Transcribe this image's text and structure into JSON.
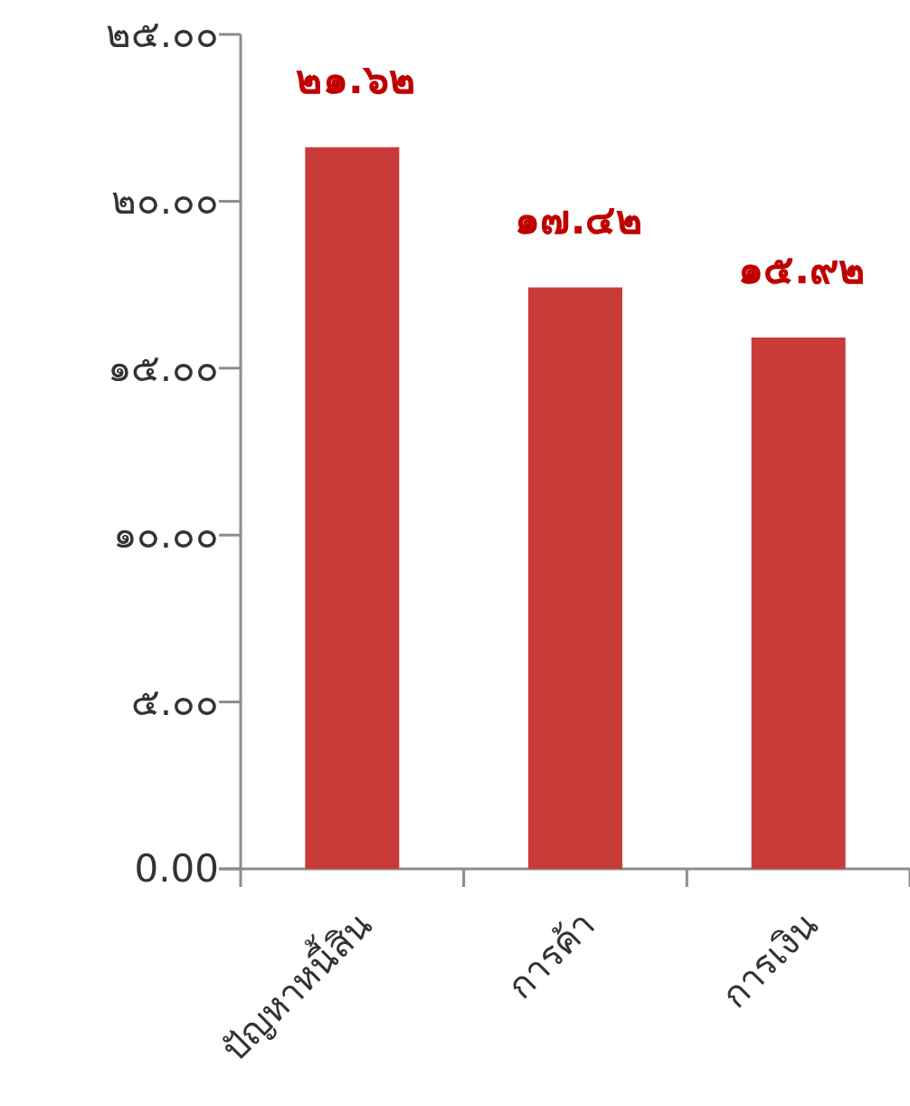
{
  "chart_data": {
    "type": "bar",
    "categories": [
      "ปัญหาหนี้สิน",
      "การค้า",
      "การเงิน"
    ],
    "series": [
      {
        "color": "#c93b38",
        "values": [
          21.62,
          17.42,
          15.92
        ],
        "value_labels": [
          "๒๑.๖๒",
          "๑๗.๔๒",
          "๑๕.๙๒"
        ]
      }
    ],
    "ylim": [
      0,
      25
    ],
    "yticks": [
      {
        "value": 0,
        "label": "0.00"
      },
      {
        "value": 5,
        "label": "๕.๐๐"
      },
      {
        "value": 10,
        "label": "๑๐.๐๐"
      },
      {
        "value": 15,
        "label": "๑๕.๐๐"
      },
      {
        "value": 20,
        "label": "๒๐.๐๐"
      },
      {
        "value": 25,
        "label": "๒๕.๐๐"
      }
    ],
    "grid": false
  }
}
